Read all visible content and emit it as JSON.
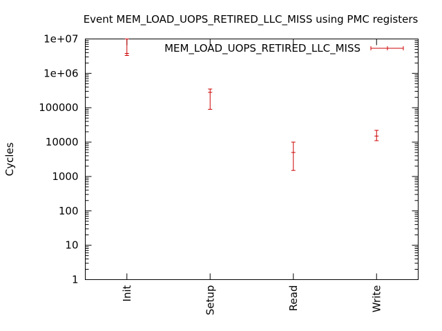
{
  "chart_data": {
    "type": "scatter",
    "title": "Event MEM_LOAD_UOPS_RETIRED_LLC_MISS using PMC registers",
    "xlabel": "",
    "ylabel": "Cycles",
    "y_scale": "log",
    "ylim": [
      1,
      10000000
    ],
    "y_ticks": [
      "1",
      "10",
      "100",
      "1000",
      "10000",
      "100000",
      "1e+06",
      "1e+07"
    ],
    "categories": [
      "Init",
      "Setup",
      "Read",
      "Write"
    ],
    "legend_position": "top-right",
    "grid": false,
    "series": [
      {
        "name": "MEM_LOAD_UOPS_RETIRED_LLC_MISS",
        "color": "#cc0000",
        "style": "errorbars",
        "values": [
          3800000,
          280000,
          5000,
          15000
        ],
        "low": [
          3300000,
          90000,
          1500,
          11000
        ],
        "high": [
          10000000,
          350000,
          10000,
          22000
        ]
      }
    ]
  }
}
